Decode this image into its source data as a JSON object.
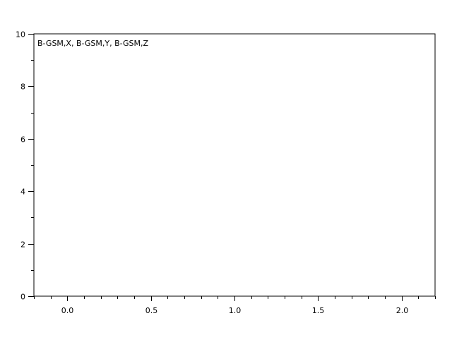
{
  "chart_data": {
    "type": "line",
    "legend_text": "B-GSM,X, B-GSM,Y, B-GSM,Z",
    "series": [],
    "xlim": [
      -0.2,
      2.2
    ],
    "ylim": [
      0,
      10
    ],
    "x_ticks": [
      "0.0",
      "0.5",
      "1.0",
      "1.5",
      "2.0"
    ],
    "x_tick_values": [
      0,
      0.5,
      1.0,
      1.5,
      2.0
    ],
    "x_minor_step": 0.1,
    "y_ticks": [
      "0",
      "2",
      "4",
      "6",
      "8",
      "10"
    ],
    "y_tick_values": [
      0,
      2,
      4,
      6,
      8,
      10
    ],
    "y_minor_step": 1,
    "grid": false,
    "legend_placement": "top-left"
  }
}
